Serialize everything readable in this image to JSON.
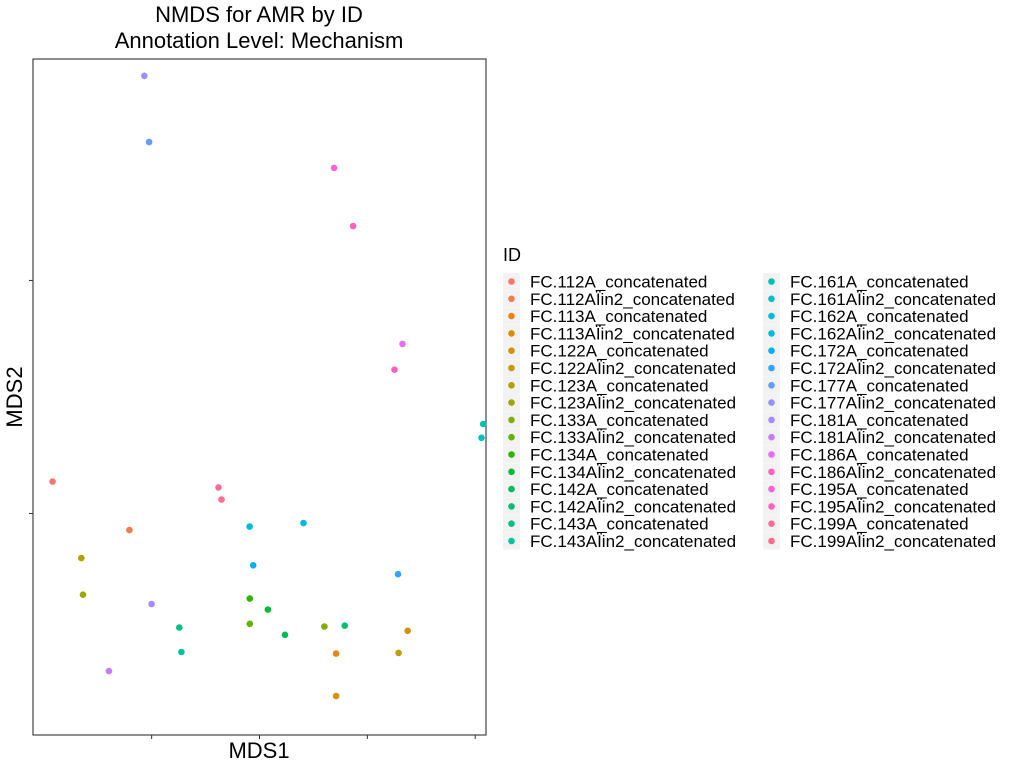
{
  "chart_data": {
    "type": "scatter",
    "title": "NMDS for AMR by ID",
    "subtitle": "Annotation Level: Mechanism",
    "xlabel": "MDS1",
    "ylabel": "MDS2",
    "xlim": [
      -0.55,
      1.55
    ],
    "ylim": [
      -0.95,
      1.95
    ],
    "x_ticks": [
      0,
      0.5,
      1.0,
      1.5
    ],
    "y_ticks": [
      0,
      1
    ],
    "tick_labels_visible": false,
    "grid": false,
    "legend": {
      "title": "ID",
      "position": "right",
      "columns": 2
    },
    "series": [
      {
        "name": "FC.112A_concatenated",
        "color": "#F8766D",
        "points": [
          [
            -0.459,
            0.137
          ]
        ]
      },
      {
        "name": "FC.112AÏin2_concatenated",
        "color": "#F07E4E",
        "points": [
          [
            -0.103,
            -0.071
          ]
        ]
      },
      {
        "name": "FC.113A_concatenated",
        "color": "#E78513",
        "points": [
          [
            0.855,
            -0.601
          ]
        ]
      },
      {
        "name": "FC.113AÏin2_concatenated",
        "color": "#DA8E00",
        "points": [
          [
            0.855,
            -0.783
          ]
        ]
      },
      {
        "name": "FC.122A_concatenated",
        "color": "#CF9400",
        "points": [
          [
            1.187,
            -0.503
          ]
        ]
      },
      {
        "name": "FC.122AÏin2_concatenated",
        "color": "#BF9C00",
        "points": [
          [
            1.145,
            -0.598
          ]
        ]
      },
      {
        "name": "FC.123A_concatenated",
        "color": "#AEA200",
        "points": [
          [
            -0.326,
            -0.191
          ]
        ]
      },
      {
        "name": "FC.123AÏin2_concatenated",
        "color": "#9AA800",
        "points": [
          [
            -0.318,
            -0.348
          ]
        ]
      },
      {
        "name": "FC.133A_concatenated",
        "color": "#84AD00",
        "points": [
          [
            0.801,
            -0.485
          ]
        ]
      },
      {
        "name": "FC.133AÏin2_concatenated",
        "color": "#64B200",
        "points": [
          [
            0.455,
            -0.473
          ]
        ]
      },
      {
        "name": "FC.134A_concatenated",
        "color": "#2BB600",
        "points": [
          [
            0.455,
            -0.365
          ]
        ]
      },
      {
        "name": "FC.134AÏin2_concatenated",
        "color": "#00BA38",
        "points": [
          [
            0.539,
            -0.412
          ]
        ]
      },
      {
        "name": "FC.142A_concatenated",
        "color": "#00BC59",
        "points": [
          [
            0.618,
            -0.52
          ]
        ]
      },
      {
        "name": "FC.142AÏin2_concatenated",
        "color": "#00BE72",
        "points": [
          [
            0.895,
            -0.481
          ]
        ]
      },
      {
        "name": "FC.143A_concatenated",
        "color": "#00BF87",
        "points": [
          [
            0.128,
            -0.489
          ]
        ]
      },
      {
        "name": "FC.143AÏin2_concatenated",
        "color": "#00C19A",
        "points": [
          [
            0.138,
            -0.594
          ]
        ]
      },
      {
        "name": "FC.161A_concatenated",
        "color": "#00C0AF",
        "points": [
          [
            1.537,
            0.384
          ]
        ]
      },
      {
        "name": "FC.161AÏin2_concatenated",
        "color": "#00BFC4",
        "points": [
          [
            1.529,
            0.325
          ]
        ]
      },
      {
        "name": "FC.162A_concatenated",
        "color": "#00BCD8",
        "points": [
          [
            0.454,
            -0.056
          ]
        ]
      },
      {
        "name": "FC.162AÏin2_concatenated",
        "color": "#00B9E3",
        "points": [
          [
            0.704,
            -0.041
          ]
        ]
      },
      {
        "name": "FC.172A_concatenated",
        "color": "#00B0F6",
        "points": [
          [
            0.471,
            -0.222
          ]
        ]
      },
      {
        "name": "FC.172AÏin2_concatenated",
        "color": "#35A2FF",
        "points": [
          [
            1.142,
            -0.26
          ]
        ]
      },
      {
        "name": "FC.177A_concatenated",
        "color": "#619CFF",
        "points": [
          [
            -0.012,
            1.594
          ]
        ]
      },
      {
        "name": "FC.177AÏin2_concatenated",
        "color": "#9590FF",
        "points": [
          [
            -0.034,
            1.878
          ]
        ]
      },
      {
        "name": "FC.181A_concatenated",
        "color": "#A58AFF",
        "points": [
          [
            0.0,
            -0.388
          ]
        ]
      },
      {
        "name": "FC.181AÏin2_concatenated",
        "color": "#C77CFF",
        "points": [
          [
            -0.198,
            -0.676
          ]
        ]
      },
      {
        "name": "FC.186A_concatenated",
        "color": "#E76BF3",
        "points": [
          [
            1.163,
            0.728
          ]
        ]
      },
      {
        "name": "FC.186AÏin2_concatenated",
        "color": "#FF61C3",
        "points": [
          [
            1.126,
            0.617
          ]
        ]
      },
      {
        "name": "FC.195A_concatenated",
        "color": "#FA62DB",
        "points": [
          [
            0.846,
            1.483
          ]
        ]
      },
      {
        "name": "FC.195AÏin2_concatenated",
        "color": "#FF62BC",
        "points": [
          [
            0.934,
            1.233
          ]
        ]
      },
      {
        "name": "FC.199A_concatenated",
        "color": "#FF6A98",
        "points": [
          [
            0.31,
            0.112
          ]
        ]
      },
      {
        "name": "FC.199AÏin2_concatenated",
        "color": "#FF6C91",
        "points": [
          [
            0.324,
            0.06
          ]
        ]
      }
    ]
  }
}
